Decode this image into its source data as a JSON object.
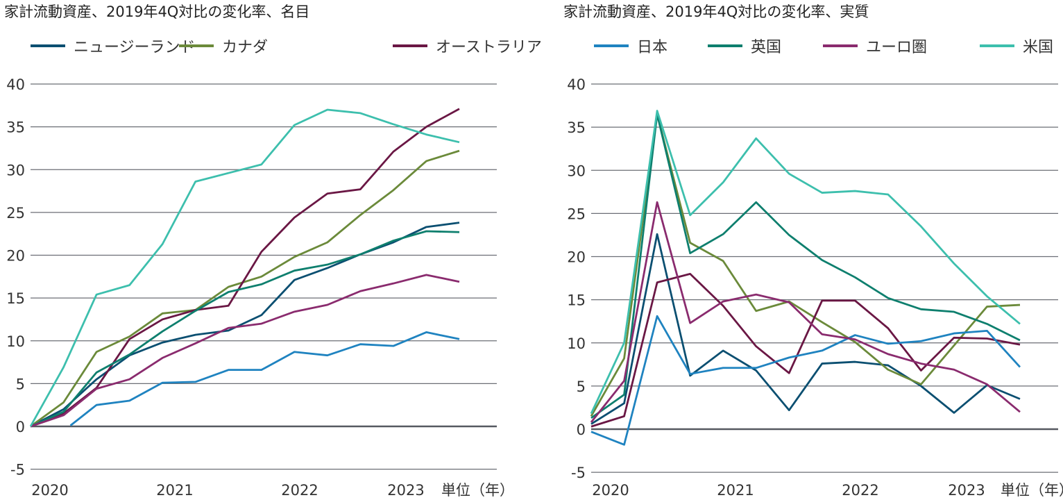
{
  "legend": [
    {
      "name": "ニュージーランド",
      "color": "#0b4f71"
    },
    {
      "name": "カナダ",
      "color": "#6b8a3a"
    },
    {
      "name": "オーストラリア",
      "color": "#6a1744"
    },
    {
      "name": "日本",
      "color": "#1f83c0"
    },
    {
      "name": "英国",
      "color": "#0e7f6e"
    },
    {
      "name": "ユーロ圏",
      "color": "#8a2b6e"
    },
    {
      "name": "米国",
      "color": "#3dbfad"
    }
  ],
  "chart_data": [
    {
      "type": "line",
      "title": "家計流動資産、2019年4Q対比の変化率、名目",
      "xlabel": "単位（年）",
      "x_tick_labels": [
        "2020",
        "2021",
        "2022",
        "2023"
      ],
      "y_ticks": [
        40,
        35,
        30,
        25,
        20,
        15,
        10,
        5,
        0,
        -5
      ],
      "ylim": [
        -5,
        40
      ],
      "grid": true,
      "legend_position": "top",
      "series": [
        {
          "name": "ニュージーランド",
          "values": [
            0,
            2,
            5.5,
            8.3,
            9.8,
            10.7,
            11.2,
            13,
            17.1,
            18.5,
            20.1,
            21.5,
            23.3,
            23.8
          ]
        },
        {
          "name": "カナダ",
          "values": [
            0,
            2.8,
            8.7,
            10.5,
            13.2,
            13.6,
            16.3,
            17.5,
            19.8,
            21.5,
            24.7,
            27.6,
            31,
            32.2
          ]
        },
        {
          "name": "オーストラリア",
          "values": [
            0,
            1.5,
            4.5,
            10.2,
            12.5,
            13.6,
            14.1,
            20.4,
            24.4,
            27.2,
            27.7,
            32.1,
            35,
            37.1
          ]
        },
        {
          "name": "日本",
          "values": [
            null,
            0.1,
            2.5,
            3,
            5.1,
            5.2,
            6.6,
            6.6,
            8.7,
            8.3,
            9.6,
            9.4,
            11,
            10.2
          ]
        },
        {
          "name": "英国",
          "values": [
            0,
            1.7,
            6.3,
            8.4,
            11.1,
            13.5,
            15.7,
            16.6,
            18.2,
            18.9,
            20.1,
            21.7,
            22.8,
            22.7
          ]
        },
        {
          "name": "ユーロ圏",
          "values": [
            0,
            1.3,
            4.4,
            5.5,
            8,
            9.7,
            11.5,
            12,
            13.4,
            14.2,
            15.8,
            16.7,
            17.7,
            16.9
          ]
        },
        {
          "name": "米国",
          "values": [
            0,
            6.9,
            15.4,
            16.5,
            21.3,
            28.6,
            29.6,
            30.6,
            35.2,
            37,
            36.6,
            35.3,
            34.1,
            33.2
          ]
        }
      ]
    },
    {
      "type": "line",
      "title": "家計流動資産、2019年4Q対比の変化率、実質",
      "xlabel": "単位（年）",
      "x_tick_labels": [
        "2020",
        "2021",
        "2022",
        "2023"
      ],
      "y_ticks": [
        40,
        35,
        30,
        25,
        20,
        15,
        10,
        5,
        0,
        -5
      ],
      "ylim": [
        -5,
        40
      ],
      "grid": true,
      "legend_position": "top",
      "series": [
        {
          "name": "ニュージーランド",
          "values": [
            0.6,
            3,
            22.6,
            6.2,
            9.1,
            6.8,
            2.2,
            7.6,
            7.8,
            7.4,
            5,
            1.9,
            5.1,
            3.5
          ]
        },
        {
          "name": "カナダ",
          "values": [
            1.5,
            8.2,
            36.5,
            21.6,
            19.5,
            13.7,
            14.8,
            12.4,
            10.1,
            6.9,
            5.2,
            9.7,
            14.2,
            14.4
          ]
        },
        {
          "name": "オーストラリア",
          "values": [
            0.3,
            1.5,
            17,
            18,
            14.3,
            9.6,
            6.5,
            14.9,
            14.9,
            11.7,
            6.8,
            10.6,
            10.5,
            9.8
          ]
        },
        {
          "name": "日本",
          "values": [
            -0.3,
            -1.8,
            13.1,
            6.4,
            7.1,
            7.1,
            8.3,
            9.1,
            10.9,
            9.9,
            10.2,
            11.1,
            11.4,
            7.2
          ]
        },
        {
          "name": "英国",
          "values": [
            1.3,
            4,
            36.5,
            20.4,
            22.6,
            26.3,
            22.5,
            19.6,
            17.6,
            15.2,
            13.9,
            13.6,
            12.2,
            10.3
          ]
        },
        {
          "name": "ユーロ圏",
          "values": [
            0.8,
            5.6,
            26.3,
            12.3,
            14.8,
            15.6,
            14.7,
            11,
            10.4,
            8.7,
            7.6,
            6.9,
            5.2,
            2
          ]
        },
        {
          "name": "米国",
          "values": [
            1.8,
            10,
            36.9,
            24.8,
            28.6,
            33.7,
            29.6,
            27.4,
            27.6,
            27.2,
            23.5,
            19.2,
            15.4,
            12.2
          ]
        }
      ]
    }
  ]
}
